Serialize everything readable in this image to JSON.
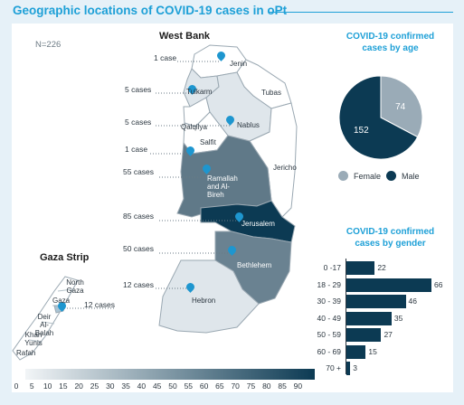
{
  "title": "Geographic locations of COVID-19 cases in oPt",
  "n_label": "N=226",
  "west_bank_title": "West Bank",
  "gaza_title": "Gaza Strip",
  "west_bank_governorates": [
    "Jenin",
    "Tulkarm",
    "Tubas",
    "Qalqilya",
    "Nablus",
    "Salfit",
    "Jericho",
    "Ramallah and Al-Bireh",
    "Jerusalem",
    "Bethlehem",
    "Hebron"
  ],
  "gaza_governorates": [
    "North Gaza",
    "Gaza",
    "Deir Al-Balah",
    "Khan Yunis",
    "Rafah"
  ],
  "cases_labels": [
    "1 case",
    "5 cases",
    "5 cases",
    "1 case",
    "55 cases",
    "85 cases",
    "50 cases",
    "12 cases",
    "12 cases"
  ],
  "colors": {
    "accent": "#1ea0d7",
    "dark": "#0c3a53",
    "female": "#9aabb7",
    "male": "#0c3a53"
  },
  "color_scale": {
    "ticks": [
      "0",
      "5",
      "10",
      "15",
      "20",
      "25",
      "30",
      "35",
      "40",
      "45",
      "50",
      "55",
      "60",
      "65",
      "70",
      "75",
      "80",
      "85",
      "90"
    ]
  },
  "chart_data": [
    {
      "type": "pie",
      "title": "COVID-19 confirmed cases by age",
      "slices": [
        {
          "name": "Female",
          "value": 74,
          "color": "#9aabb7"
        },
        {
          "name": "Male",
          "value": 152,
          "color": "#0c3a53"
        }
      ],
      "legend": [
        "Female",
        "Male"
      ],
      "legend_position": "bottom"
    },
    {
      "type": "bar",
      "orientation": "horizontal",
      "title": "COVID-19 confirmed cases by gender",
      "categories": [
        "0 -17",
        "18 - 29",
        "30 - 39",
        "40 - 49",
        "50 - 59",
        "60 - 69",
        "70 +"
      ],
      "values": [
        22,
        66,
        46,
        35,
        27,
        15,
        3
      ],
      "xlim": [
        0,
        66
      ]
    }
  ]
}
